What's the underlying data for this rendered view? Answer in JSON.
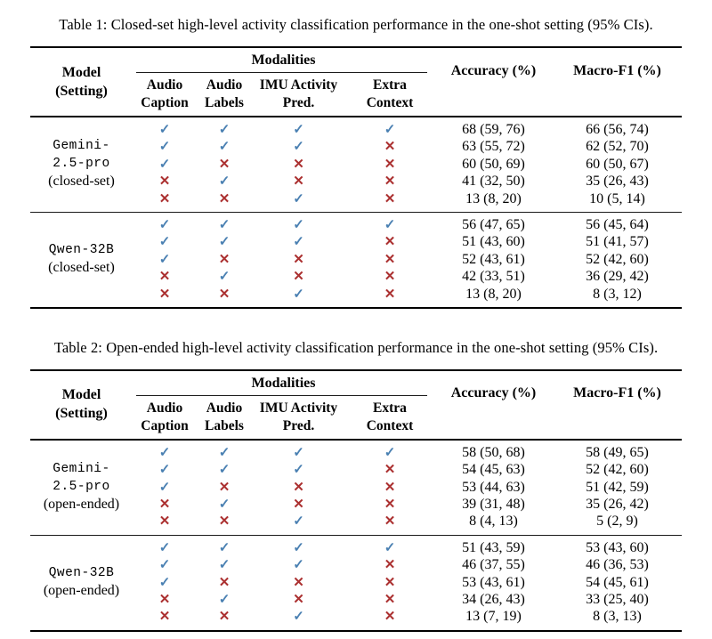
{
  "colors": {
    "check": "#4a80b2",
    "cross": "#ab3030",
    "rule": "#000000",
    "background": "#ffffff"
  },
  "icons": {
    "check": "✓",
    "cross": "✕"
  },
  "tables": [
    {
      "caption": "Table 1: Closed-set high-level activity classification performance in the one-shot setting (95% CIs).",
      "header": {
        "model_line1": "Model",
        "model_line2": "(Setting)",
        "modalities": "Modalities",
        "subcols": [
          [
            "Audio",
            "Caption"
          ],
          [
            "Audio",
            "Labels"
          ],
          [
            "IMU Activity",
            "Pred."
          ],
          [
            "Extra",
            "Context"
          ]
        ],
        "accuracy": "Accuracy (%)",
        "macro_f1": "Macro-F1 (%)"
      },
      "groups": [
        {
          "model_lines": [
            "Gemini-",
            "2.5-pro"
          ],
          "setting": "(closed-set)",
          "rows": [
            {
              "marks": [
                "check",
                "check",
                "check",
                "check"
              ],
              "accuracy": "68 (59, 76)",
              "macro_f1": "66 (56, 74)"
            },
            {
              "marks": [
                "check",
                "check",
                "check",
                "cross"
              ],
              "accuracy": "63 (55, 72)",
              "macro_f1": "62 (52, 70)"
            },
            {
              "marks": [
                "check",
                "cross",
                "cross",
                "cross"
              ],
              "accuracy": "60 (50, 69)",
              "macro_f1": "60 (50, 67)"
            },
            {
              "marks": [
                "cross",
                "check",
                "cross",
                "cross"
              ],
              "accuracy": "41 (32, 50)",
              "macro_f1": "35 (26, 43)"
            },
            {
              "marks": [
                "cross",
                "cross",
                "check",
                "cross"
              ],
              "accuracy": "13 (8, 20)",
              "macro_f1": "10 (5, 14)"
            }
          ]
        },
        {
          "model_lines": [
            "Qwen-32B"
          ],
          "setting": "(closed-set)",
          "rows": [
            {
              "marks": [
                "check",
                "check",
                "check",
                "check"
              ],
              "accuracy": "56 (47, 65)",
              "macro_f1": "56 (45, 64)"
            },
            {
              "marks": [
                "check",
                "check",
                "check",
                "cross"
              ],
              "accuracy": "51 (43, 60)",
              "macro_f1": "51 (41, 57)"
            },
            {
              "marks": [
                "check",
                "cross",
                "cross",
                "cross"
              ],
              "accuracy": "52 (43, 61)",
              "macro_f1": "52 (42, 60)"
            },
            {
              "marks": [
                "cross",
                "check",
                "cross",
                "cross"
              ],
              "accuracy": "42 (33, 51)",
              "macro_f1": "36 (29, 42)"
            },
            {
              "marks": [
                "cross",
                "cross",
                "check",
                "cross"
              ],
              "accuracy": "13 (8, 20)",
              "macro_f1": "8 (3, 12)"
            }
          ]
        }
      ]
    },
    {
      "caption": "Table 2: Open-ended high-level activity classification performance in the one-shot setting (95% CIs).",
      "header": {
        "model_line1": "Model",
        "model_line2": "(Setting)",
        "modalities": "Modalities",
        "subcols": [
          [
            "Audio",
            "Caption"
          ],
          [
            "Audio",
            "Labels"
          ],
          [
            "IMU Activity",
            "Pred."
          ],
          [
            "Extra",
            "Context"
          ]
        ],
        "accuracy": "Accuracy (%)",
        "macro_f1": "Macro-F1 (%)"
      },
      "groups": [
        {
          "model_lines": [
            "Gemini-",
            "2.5-pro"
          ],
          "setting": "(open-ended)",
          "rows": [
            {
              "marks": [
                "check",
                "check",
                "check",
                "check"
              ],
              "accuracy": "58 (50, 68)",
              "macro_f1": "58 (49, 65)"
            },
            {
              "marks": [
                "check",
                "check",
                "check",
                "cross"
              ],
              "accuracy": "54 (45, 63)",
              "macro_f1": "52 (42, 60)"
            },
            {
              "marks": [
                "check",
                "cross",
                "cross",
                "cross"
              ],
              "accuracy": "53 (44, 63)",
              "macro_f1": "51 (42, 59)"
            },
            {
              "marks": [
                "cross",
                "check",
                "cross",
                "cross"
              ],
              "accuracy": "39 (31, 48)",
              "macro_f1": "35 (26, 42)"
            },
            {
              "marks": [
                "cross",
                "cross",
                "check",
                "cross"
              ],
              "accuracy": "8 (4, 13)",
              "macro_f1": "5 (2, 9)"
            }
          ]
        },
        {
          "model_lines": [
            "Qwen-32B"
          ],
          "setting": "(open-ended)",
          "rows": [
            {
              "marks": [
                "check",
                "check",
                "check",
                "check"
              ],
              "accuracy": "51 (43, 59)",
              "macro_f1": "53 (43, 60)"
            },
            {
              "marks": [
                "check",
                "check",
                "check",
                "cross"
              ],
              "accuracy": "46 (37, 55)",
              "macro_f1": "46 (36, 53)"
            },
            {
              "marks": [
                "check",
                "cross",
                "cross",
                "cross"
              ],
              "accuracy": "53 (43, 61)",
              "macro_f1": "54 (45, 61)"
            },
            {
              "marks": [
                "cross",
                "check",
                "cross",
                "cross"
              ],
              "accuracy": "34 (26, 43)",
              "macro_f1": "33 (25, 40)"
            },
            {
              "marks": [
                "cross",
                "cross",
                "check",
                "cross"
              ],
              "accuracy": "13 (7, 19)",
              "macro_f1": "8 (3, 13)"
            }
          ]
        }
      ]
    }
  ]
}
